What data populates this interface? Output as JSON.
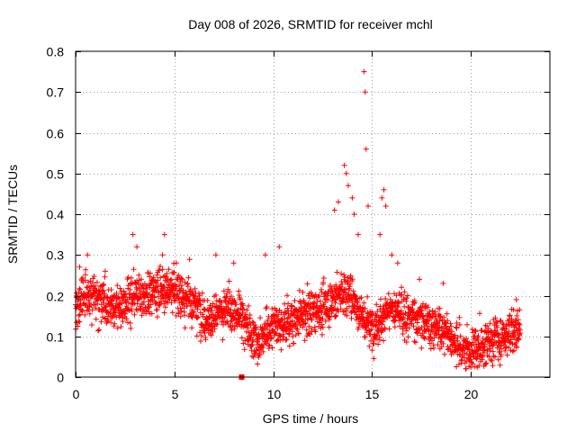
{
  "chart_data": {
    "type": "scatter",
    "title": "Day 008 of 2026, SRMTID for receiver mchl",
    "xlabel": "GPS time / hours",
    "ylabel": "SRMTID / TECUs",
    "xlim": [
      0,
      24
    ],
    "ylim": [
      0,
      0.8
    ],
    "x_ticks": [
      0,
      5,
      10,
      15,
      20
    ],
    "x_tick_labels": [
      "0",
      "5",
      "10",
      "15",
      "20"
    ],
    "y_ticks": [
      0,
      0.1,
      0.2,
      0.3,
      0.4,
      0.5,
      0.6,
      0.7,
      0.8
    ],
    "y_tick_labels": [
      "0",
      "0.1",
      "0.2",
      "0.3",
      "0.4",
      "0.5",
      "0.6",
      "0.7",
      "0.8"
    ],
    "grid": true,
    "marker": "plus",
    "color": "#ff0000",
    "sample_spacing_hours": 0.01,
    "trend": [
      [
        0.0,
        0.17
      ],
      [
        0.5,
        0.2
      ],
      [
        1.0,
        0.2
      ],
      [
        1.5,
        0.18
      ],
      [
        2.0,
        0.17
      ],
      [
        2.5,
        0.18
      ],
      [
        3.0,
        0.19
      ],
      [
        3.5,
        0.2
      ],
      [
        4.0,
        0.21
      ],
      [
        4.5,
        0.22
      ],
      [
        5.0,
        0.21
      ],
      [
        5.5,
        0.2
      ],
      [
        6.0,
        0.18
      ],
      [
        6.5,
        0.15
      ],
      [
        7.0,
        0.14
      ],
      [
        7.5,
        0.16
      ],
      [
        8.0,
        0.17
      ],
      [
        8.5,
        0.14
      ],
      [
        9.0,
        0.09
      ],
      [
        9.5,
        0.1
      ],
      [
        10.0,
        0.13
      ],
      [
        10.5,
        0.13
      ],
      [
        11.0,
        0.14
      ],
      [
        11.5,
        0.15
      ],
      [
        12.0,
        0.16
      ],
      [
        12.5,
        0.17
      ],
      [
        13.0,
        0.19
      ],
      [
        13.5,
        0.21
      ],
      [
        14.0,
        0.2
      ],
      [
        14.5,
        0.15
      ],
      [
        15.0,
        0.12
      ],
      [
        15.5,
        0.15
      ],
      [
        16.0,
        0.16
      ],
      [
        16.5,
        0.16
      ],
      [
        17.0,
        0.15
      ],
      [
        17.5,
        0.14
      ],
      [
        18.0,
        0.13
      ],
      [
        18.5,
        0.12
      ],
      [
        19.0,
        0.1
      ],
      [
        19.5,
        0.07
      ],
      [
        20.0,
        0.06
      ],
      [
        20.5,
        0.07
      ],
      [
        21.0,
        0.09
      ],
      [
        21.5,
        0.1
      ],
      [
        22.0,
        0.11
      ],
      [
        22.5,
        0.12
      ]
    ],
    "spikes": [
      [
        0.2,
        0.27
      ],
      [
        0.6,
        0.3
      ],
      [
        1.5,
        0.26
      ],
      [
        2.9,
        0.35
      ],
      [
        3.1,
        0.32
      ],
      [
        4.4,
        0.3
      ],
      [
        4.5,
        0.35
      ],
      [
        5.1,
        0.28
      ],
      [
        7.1,
        0.3
      ],
      [
        8.0,
        0.28
      ],
      [
        9.6,
        0.3
      ],
      [
        10.3,
        0.32
      ],
      [
        13.1,
        0.41
      ],
      [
        13.3,
        0.43
      ],
      [
        13.6,
        0.52
      ],
      [
        13.7,
        0.5
      ],
      [
        13.8,
        0.47
      ],
      [
        14.0,
        0.44
      ],
      [
        14.1,
        0.4
      ],
      [
        14.3,
        0.35
      ],
      [
        14.6,
        0.75
      ],
      [
        14.65,
        0.7
      ],
      [
        14.7,
        0.56
      ],
      [
        14.8,
        0.42
      ],
      [
        15.6,
        0.46
      ],
      [
        15.5,
        0.44
      ],
      [
        15.7,
        0.42
      ],
      [
        15.4,
        0.35
      ],
      [
        16.0,
        0.3
      ],
      [
        16.3,
        0.28
      ],
      [
        17.4,
        0.24
      ],
      [
        18.6,
        0.23
      ],
      [
        22.3,
        0.19
      ]
    ],
    "outlier_points": [
      [
        8.4,
        0.0
      ]
    ]
  }
}
